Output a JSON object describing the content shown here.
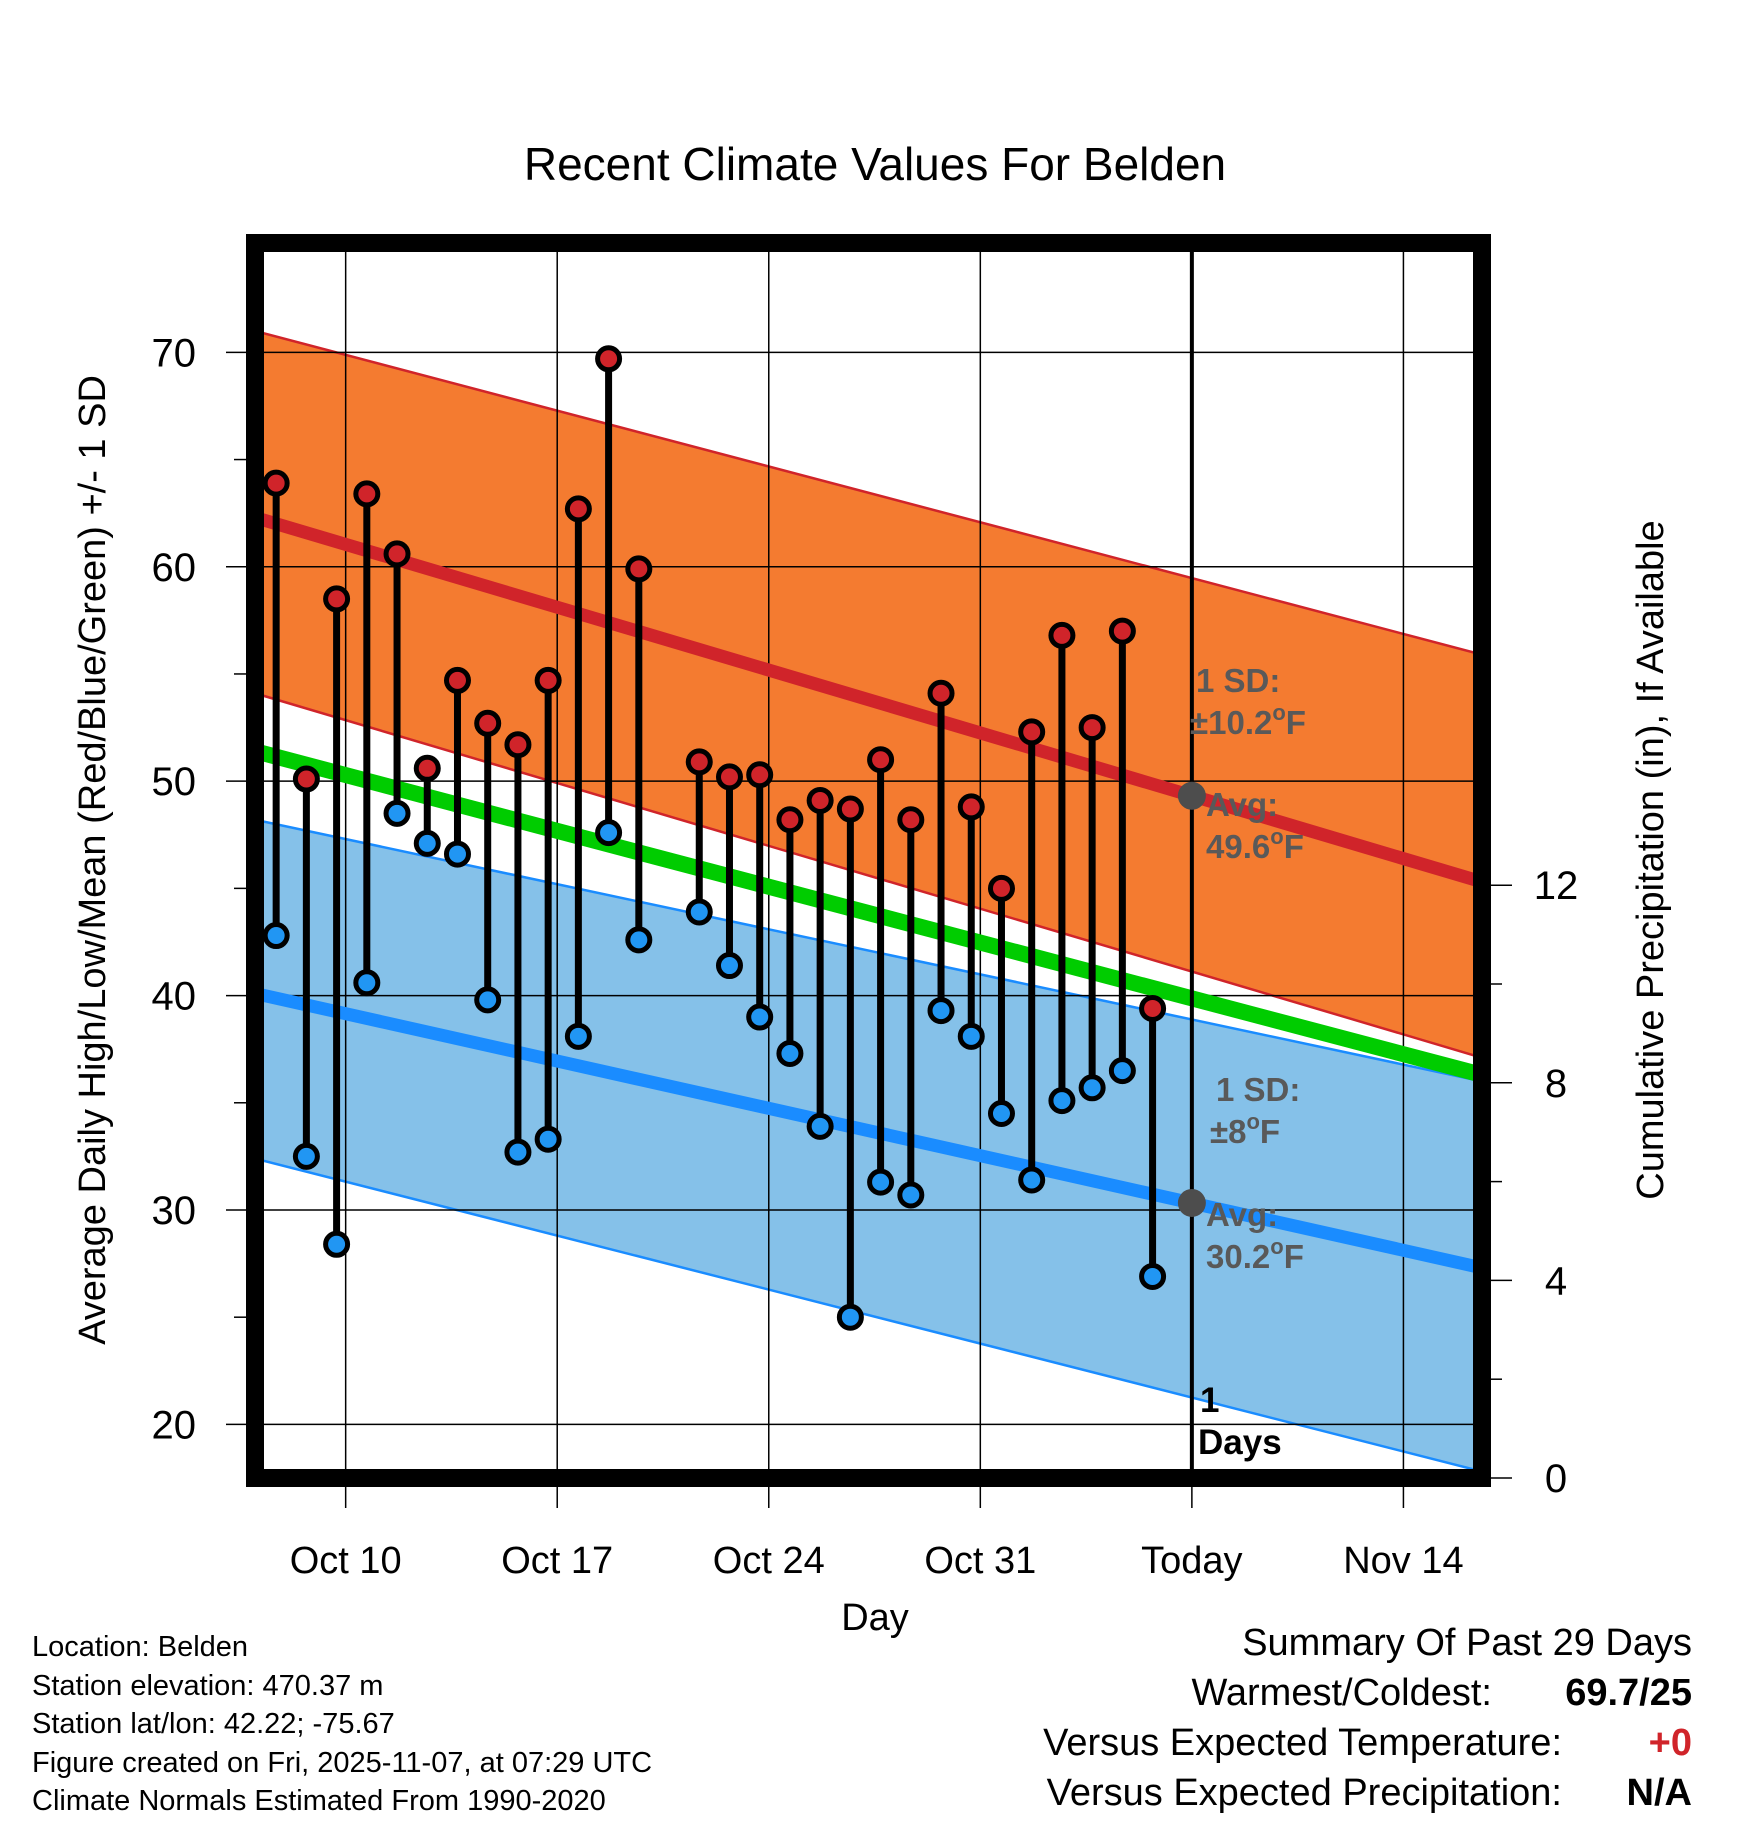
{
  "chart_data": {
    "type": "line",
    "title": "Recent Climate Values For Belden",
    "xlabel": "Day",
    "ylabel": "Average Daily High/Low/Mean (Red/Blue/Green) +/- 1 SD",
    "ylabel_right": "Cumulative Precipitation (in), If Available",
    "ylim": [
      17.5,
      75.1
    ],
    "ylim_right": [
      0,
      25
    ],
    "xlim_days": [
      0,
      40.6
    ],
    "x_start_date": "Oct 7",
    "yticks": [
      20,
      30,
      40,
      50,
      60,
      70
    ],
    "yticks_right": [
      0,
      4,
      8,
      12
    ],
    "xticks": [
      {
        "label": "Oct 10",
        "day": 3
      },
      {
        "label": "Oct 17",
        "day": 10
      },
      {
        "label": "Oct 24",
        "day": 17
      },
      {
        "label": "Oct 31",
        "day": 24
      },
      {
        "label": "Today",
        "day": 31
      },
      {
        "label": "Nov 14",
        "day": 38
      }
    ],
    "today_day": 31,
    "today_label": "1",
    "today_label_units": "Days",
    "grid": true,
    "normals": {
      "high_mean": [
        62.3,
        45.3
      ],
      "high_upper": [
        71.0,
        55.9
      ],
      "high_lower": [
        54.1,
        37.1
      ],
      "low_mean": [
        40.1,
        27.3
      ],
      "low_upper": [
        48.2,
        36.0
      ],
      "low_lower": [
        32.4,
        17.8
      ],
      "daily_mean": [
        51.4,
        36.3
      ]
    },
    "observed": {
      "days": [
        0.7,
        1.7,
        2.7,
        3.7,
        4.7,
        5.7,
        6.7,
        7.7,
        8.7,
        9.7,
        10.7,
        11.7,
        12.7,
        14.7,
        15.7,
        16.7,
        17.7,
        18.7,
        19.7,
        20.7,
        21.7,
        22.7,
        23.7,
        24.7,
        25.7,
        26.7,
        27.7,
        28.7,
        29.7
      ],
      "highs": [
        63.9,
        50.1,
        58.5,
        63.4,
        60.6,
        50.6,
        54.7,
        52.7,
        51.7,
        54.7,
        62.7,
        69.7,
        59.9,
        50.9,
        50.2,
        50.3,
        48.2,
        49.1,
        48.7,
        51.0,
        48.2,
        54.1,
        48.8,
        45.0,
        52.3,
        56.8,
        52.5,
        57.0,
        39.4
      ],
      "lows": [
        42.8,
        32.5,
        28.4,
        40.6,
        48.5,
        47.1,
        46.6,
        39.8,
        32.7,
        33.3,
        38.1,
        47.6,
        42.6,
        43.9,
        41.4,
        39.0,
        37.3,
        33.9,
        25.0,
        31.3,
        30.7,
        39.3,
        38.1,
        34.5,
        31.4,
        35.1,
        35.7,
        36.5,
        26.9
      ]
    },
    "annotations": {
      "high_sd": {
        "line1": "1 SD:",
        "line2": "±10.2",
        "unit": "F"
      },
      "high_avg": {
        "line1": "Avg:",
        "line2": "49.6",
        "unit": "F"
      },
      "low_sd": {
        "line1": "1 SD:",
        "line2": "±8",
        "unit": "F"
      },
      "low_avg": {
        "line1": "Avg:",
        "line2": "30.2",
        "unit": "F"
      },
      "degree_symbol": "o"
    },
    "colors": {
      "high_band": "#f47b30",
      "high_line": "#d0242a",
      "low_band": "#85c1e9",
      "low_line": "#1a8cff",
      "mean_line": "#00cc00",
      "high_dot": "#d0242a",
      "low_dot": "#2196f3",
      "annotation": "#595959",
      "today_dot": "#4d4d4d"
    }
  },
  "info": {
    "location": "Location: Belden",
    "elevation": "Station elevation: 470.37 m",
    "latlon": "Station lat/lon: 42.22; -75.67",
    "created": "Figure created on Fri, 2025-11-07, at 07:29 UTC",
    "normals": "Climate Normals Estimated From 1990-2020"
  },
  "summary": {
    "title": "Summary Of Past 29 Days",
    "warm_cold_label": "Warmest/Coldest:",
    "warm_cold_value": "69.7/25",
    "temp_label": "Versus Expected Temperature:",
    "temp_value": "+0",
    "precip_label": "Versus Expected Precipitation:",
    "precip_value": "N/A"
  }
}
